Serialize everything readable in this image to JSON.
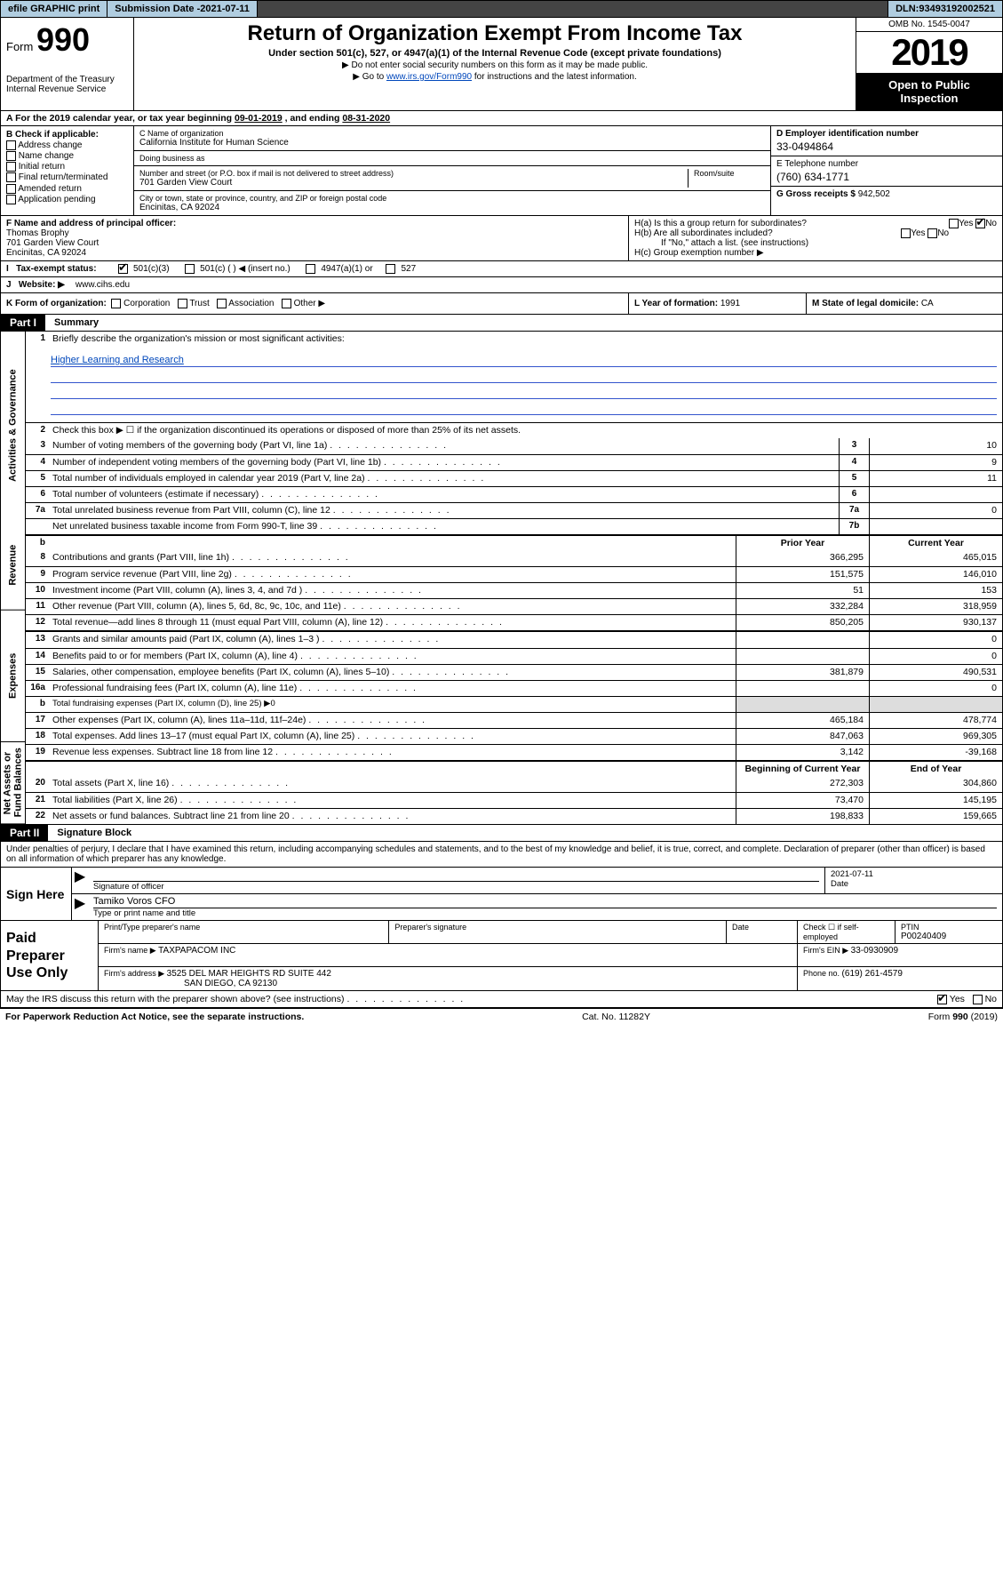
{
  "topbar": {
    "efile": "efile GRAPHIC print",
    "submission_label": "Submission Date - ",
    "submission_date": "2021-07-11",
    "dln_label": "DLN: ",
    "dln": "93493192002521"
  },
  "header": {
    "form_prefix": "Form",
    "form_num": "990",
    "dept": "Department of the Treasury\nInternal Revenue Service",
    "title": "Return of Organization Exempt From Income Tax",
    "sub1": "Under section 501(c), 527, or 4947(a)(1) of the Internal Revenue Code (except private foundations)",
    "sub2": "▶ Do not enter social security numbers on this form as it may be made public.",
    "sub3a": "▶ Go to ",
    "sub3link": "www.irs.gov/Form990",
    "sub3b": " for instructions and the latest information.",
    "omb": "OMB No. 1545-0047",
    "year": "2019",
    "open": "Open to Public Inspection"
  },
  "period": {
    "text_a": "For the 2019 calendar year, or tax year beginning ",
    "begin": "09-01-2019",
    "text_b": " , and ending ",
    "end": "08-31-2020"
  },
  "boxB": {
    "hdr": "B Check if applicable:",
    "items": [
      "Address change",
      "Name change",
      "Initial return",
      "Final return/terminated",
      "Amended return",
      "Application pending"
    ]
  },
  "boxC": {
    "name_lbl": "C Name of organization",
    "name": "California Institute for Human Science",
    "dba_lbl": "Doing business as",
    "dba": "",
    "street_lbl": "Number and street (or P.O. box if mail is not delivered to street address)",
    "street": "701 Garden View Court",
    "suite_lbl": "Room/suite",
    "suite": "",
    "city_lbl": "City or town, state or province, country, and ZIP or foreign postal code",
    "city": "Encinitas, CA  92024"
  },
  "boxD": {
    "lbl": "D Employer identification number",
    "val": "33-0494864"
  },
  "boxE": {
    "lbl": "E Telephone number",
    "val": "(760) 634-1771"
  },
  "boxG": {
    "lbl": "G Gross receipts $ ",
    "val": "942,502"
  },
  "boxF": {
    "lbl": "F  Name and address of principal officer:",
    "name": "Thomas Brophy",
    "addr1": "701 Garden View Court",
    "addr2": "Encinitas, CA  92024"
  },
  "boxH": {
    "a": "H(a)  Is this a group return for subordinates?",
    "a_yes": false,
    "a_no": true,
    "b": "H(b)  Are all subordinates included?",
    "b_note": "If \"No,\" attach a list. (see instructions)",
    "c": "H(c)  Group exemption number ▶"
  },
  "taxex": {
    "lbl": "Tax-exempt status:",
    "c3": "501(c)(3)",
    "c3_checked": true,
    "c": "501(c) (   ) ◀ (insert no.)",
    "a1": "4947(a)(1) or",
    "527": "527"
  },
  "boxJ": {
    "lbl": "Website: ▶",
    "val": "www.cihs.edu"
  },
  "boxK": {
    "lbl": "K Form of organization:",
    "opts": [
      "Corporation",
      "Trust",
      "Association",
      "Other ▶"
    ]
  },
  "boxL": {
    "lbl": "L Year of formation: ",
    "val": "1991"
  },
  "boxM": {
    "lbl": "M State of legal domicile: ",
    "val": "CA"
  },
  "partI": {
    "hdr": "Part I",
    "title": "Summary",
    "side_labels": [
      "Activities & Governance",
      "Revenue",
      "Expenses",
      "Net Assets or Fund Balances"
    ],
    "l1": "Briefly describe the organization's mission or most significant activities:",
    "mission": "Higher Learning and Research",
    "l2": "Check this box ▶ ☐  if the organization discontinued its operations or disposed of more than 25% of its net assets.",
    "rows_top": [
      {
        "n": "3",
        "d": "Number of voting members of the governing body (Part VI, line 1a)",
        "box": "3",
        "v": "10"
      },
      {
        "n": "4",
        "d": "Number of independent voting members of the governing body (Part VI, line 1b)",
        "box": "4",
        "v": "9"
      },
      {
        "n": "5",
        "d": "Total number of individuals employed in calendar year 2019 (Part V, line 2a)",
        "box": "5",
        "v": "11"
      },
      {
        "n": "6",
        "d": "Total number of volunteers (estimate if necessary)",
        "box": "6",
        "v": ""
      },
      {
        "n": "7a",
        "d": "Total unrelated business revenue from Part VIII, column (C), line 12",
        "box": "7a",
        "v": "0"
      },
      {
        "n": "",
        "d": "Net unrelated business taxable income from Form 990-T, line 39",
        "box": "7b",
        "v": ""
      }
    ],
    "colhdr_b": "b",
    "colhdr": {
      "prior": "Prior Year",
      "current": "Current Year"
    },
    "rev": [
      {
        "n": "8",
        "d": "Contributions and grants (Part VIII, line 1h)",
        "p": "366,295",
        "c": "465,015"
      },
      {
        "n": "9",
        "d": "Program service revenue (Part VIII, line 2g)",
        "p": "151,575",
        "c": "146,010"
      },
      {
        "n": "10",
        "d": "Investment income (Part VIII, column (A), lines 3, 4, and 7d )",
        "p": "51",
        "c": "153"
      },
      {
        "n": "11",
        "d": "Other revenue (Part VIII, column (A), lines 5, 6d, 8c, 9c, 10c, and 11e)",
        "p": "332,284",
        "c": "318,959"
      },
      {
        "n": "12",
        "d": "Total revenue—add lines 8 through 11 (must equal Part VIII, column (A), line 12)",
        "p": "850,205",
        "c": "930,137"
      }
    ],
    "exp": [
      {
        "n": "13",
        "d": "Grants and similar amounts paid (Part IX, column (A), lines 1–3 )",
        "p": "",
        "c": "0"
      },
      {
        "n": "14",
        "d": "Benefits paid to or for members (Part IX, column (A), line 4)",
        "p": "",
        "c": "0"
      },
      {
        "n": "15",
        "d": "Salaries, other compensation, employee benefits (Part IX, column (A), lines 5–10)",
        "p": "381,879",
        "c": "490,531"
      },
      {
        "n": "16a",
        "d": "Professional fundraising fees (Part IX, column (A), line 11e)",
        "p": "",
        "c": "0"
      },
      {
        "n": "b",
        "d": "Total fundraising expenses (Part IX, column (D), line 25) ▶0",
        "p": "—",
        "c": "—"
      },
      {
        "n": "17",
        "d": "Other expenses (Part IX, column (A), lines 11a–11d, 11f–24e)",
        "p": "465,184",
        "c": "478,774"
      },
      {
        "n": "18",
        "d": "Total expenses. Add lines 13–17 (must equal Part IX, column (A), line 25)",
        "p": "847,063",
        "c": "969,305"
      },
      {
        "n": "19",
        "d": "Revenue less expenses. Subtract line 18 from line 12",
        "p": "3,142",
        "c": "-39,168"
      }
    ],
    "nethdr": {
      "prior": "Beginning of Current Year",
      "current": "End of Year"
    },
    "net": [
      {
        "n": "20",
        "d": "Total assets (Part X, line 16)",
        "p": "272,303",
        "c": "304,860"
      },
      {
        "n": "21",
        "d": "Total liabilities (Part X, line 26)",
        "p": "73,470",
        "c": "145,195"
      },
      {
        "n": "22",
        "d": "Net assets or fund balances. Subtract line 21 from line 20",
        "p": "198,833",
        "c": "159,665"
      }
    ]
  },
  "partII": {
    "hdr": "Part II",
    "title": "Signature Block",
    "perjury": "Under penalties of perjury, I declare that I have examined this return, including accompanying schedules and statements, and to the best of my knowledge and belief, it is true, correct, and complete. Declaration of preparer (other than officer) is based on all information of which preparer has any knowledge."
  },
  "sign": {
    "lbl": "Sign Here",
    "sig_lbl": "Signature of officer",
    "date_lbl": "Date",
    "date": "2021-07-11",
    "name": "Tamiko Voros CFO",
    "name_lbl": "Type or print name and title"
  },
  "prep": {
    "lbl": "Paid Preparer Use Only",
    "r1": {
      "a": "Print/Type preparer's name",
      "b": "Preparer's signature",
      "c": "Date",
      "d_lbl": "Check ☐ if self-employed",
      "e_lbl": "PTIN",
      "e": "P00240409"
    },
    "r2": {
      "a_lbl": "Firm's name    ▶ ",
      "a": "TAXPAPACOM INC",
      "b_lbl": "Firm's EIN ▶ ",
      "b": "33-0930909"
    },
    "r3": {
      "a_lbl": "Firm's address ▶ ",
      "a1": "3525 DEL MAR HEIGHTS RD SUITE 442",
      "a2": "SAN DIEGO, CA  92130",
      "b_lbl": "Phone no. ",
      "b": "(619) 261-4579"
    }
  },
  "discuss": {
    "q": "May the IRS discuss this return with the preparer shown above? (see instructions)",
    "yes": true,
    "no": false
  },
  "footer": {
    "l": "For Paperwork Reduction Act Notice, see the separate instructions.",
    "c": "Cat. No. 11282Y",
    "r": "Form 990 (2019)"
  }
}
